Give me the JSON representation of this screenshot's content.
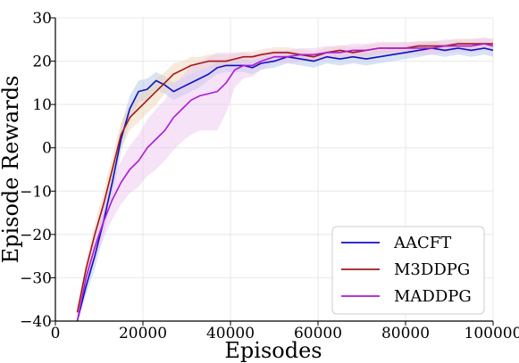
{
  "chart_data": {
    "type": "line",
    "title": "",
    "xlabel": "Episodes",
    "ylabel": "Episode Rewards",
    "xlim": [
      0,
      100000
    ],
    "ylim": [
      -40,
      30
    ],
    "xticks": [
      0,
      20000,
      40000,
      60000,
      80000,
      100000
    ],
    "xtick_labels": [
      "0",
      "20000",
      "40000",
      "60000",
      "80000",
      "100000"
    ],
    "yticks": [
      -40,
      -30,
      -20,
      -10,
      0,
      10,
      20,
      30
    ],
    "ytick_labels": [
      "−40",
      "−30",
      "−20",
      "−10",
      "0",
      "10",
      "20",
      "30"
    ],
    "grid": true,
    "legend_position": "lower-right",
    "series": [
      {
        "name": "AACFT",
        "color": "#1010c0",
        "band_color": "#a8c0e8",
        "x": [
          5000,
          7000,
          9000,
          11000,
          13000,
          15000,
          17000,
          19000,
          21000,
          23000,
          25000,
          27000,
          29000,
          31000,
          33000,
          35000,
          37000,
          39000,
          41000,
          43000,
          45000,
          47000,
          50000,
          53000,
          56000,
          59000,
          62000,
          65000,
          68000,
          71000,
          74000,
          77000,
          80000,
          83000,
          86000,
          89000,
          92000,
          95000,
          98000,
          100000
        ],
        "values": [
          -40,
          -32,
          -25,
          -17,
          -8,
          2,
          9,
          13,
          13.5,
          15.5,
          14.5,
          13,
          14,
          15,
          16,
          17,
          18.5,
          19,
          19,
          19,
          18.5,
          19.5,
          20,
          21,
          20.5,
          20,
          21,
          20.5,
          21,
          20.5,
          21,
          21.5,
          22,
          22.5,
          23,
          22.5,
          23,
          22.5,
          23,
          22.5
        ],
        "band": [
          0.5,
          2,
          3,
          3,
          3.5,
          3,
          3,
          2.5,
          2.5,
          2,
          2,
          2,
          2,
          2,
          2,
          1.5,
          1.5,
          1.5,
          1.5,
          1.5,
          1.5,
          1.5,
          1.5,
          1.5,
          1.5,
          1.5,
          1.5,
          1.5,
          1.5,
          1.5,
          1.5,
          1.5,
          1.5,
          1.5,
          1.5,
          1.5,
          1.5,
          1.5,
          1.5,
          1.5
        ]
      },
      {
        "name": "M3DDPG",
        "color": "#a01818",
        "band_color": "#f0d0b0",
        "x": [
          5000,
          7000,
          9000,
          11000,
          13000,
          15000,
          17000,
          19000,
          21000,
          23000,
          25000,
          27000,
          29000,
          31000,
          33000,
          35000,
          37000,
          39000,
          41000,
          43000,
          45000,
          47000,
          50000,
          53000,
          56000,
          59000,
          62000,
          65000,
          68000,
          71000,
          74000,
          77000,
          80000,
          83000,
          86000,
          89000,
          92000,
          95000,
          98000,
          100000
        ],
        "values": [
          -38,
          -28,
          -20,
          -13,
          -5,
          3,
          7,
          9,
          11,
          13,
          15,
          17,
          18,
          19,
          19.5,
          20,
          20,
          20,
          20.5,
          21,
          21,
          21.5,
          22,
          22,
          21.5,
          21,
          22,
          22.5,
          22,
          22.5,
          23,
          23,
          23,
          23.5,
          23.5,
          23.5,
          24,
          24,
          24,
          24
        ],
        "band": [
          1,
          2,
          2.5,
          3,
          3,
          3,
          3,
          3,
          3,
          3,
          2.5,
          2.5,
          2,
          2,
          1.5,
          1.5,
          1.5,
          1.5,
          1.2,
          1.2,
          1.2,
          1.2,
          1.2,
          1.2,
          1.2,
          1.2,
          1.2,
          1.2,
          1.2,
          1.2,
          1.2,
          1.2,
          1.2,
          1.2,
          1.2,
          1.2,
          1.2,
          1.2,
          1.2,
          1.2
        ]
      },
      {
        "name": "MADDPG",
        "color": "#b018d8",
        "band_color": "#ecc0f0",
        "x": [
          5000,
          7000,
          9000,
          11000,
          13000,
          15000,
          17000,
          19000,
          21000,
          23000,
          25000,
          27000,
          29000,
          31000,
          33000,
          35000,
          37000,
          39000,
          41000,
          43000,
          45000,
          47000,
          50000,
          53000,
          56000,
          59000,
          62000,
          65000,
          68000,
          71000,
          74000,
          77000,
          80000,
          83000,
          86000,
          89000,
          92000,
          95000,
          98000,
          100000
        ],
        "values": [
          -40,
          -30,
          -23,
          -17,
          -12,
          -8,
          -5,
          -3,
          0,
          2,
          4,
          7,
          9,
          11,
          12,
          12.5,
          13,
          15,
          18,
          19,
          19,
          20,
          21,
          21,
          21.5,
          21.5,
          22,
          22,
          22.5,
          22.5,
          23,
          23,
          23,
          23,
          23,
          23.5,
          23.5,
          23.5,
          24,
          23.5
        ],
        "band": [
          1,
          2,
          3,
          4,
          4.5,
          5,
          5.5,
          6,
          6.5,
          7,
          7,
          7.5,
          7.5,
          8,
          8,
          8.5,
          9,
          7,
          4,
          3,
          2.5,
          2,
          1.5,
          1.5,
          1.5,
          1.5,
          1.5,
          1.5,
          1.5,
          1.5,
          1.5,
          1.5,
          1.5,
          1.5,
          1.5,
          1.5,
          1.5,
          1.5,
          1.5,
          1.5
        ]
      }
    ]
  }
}
